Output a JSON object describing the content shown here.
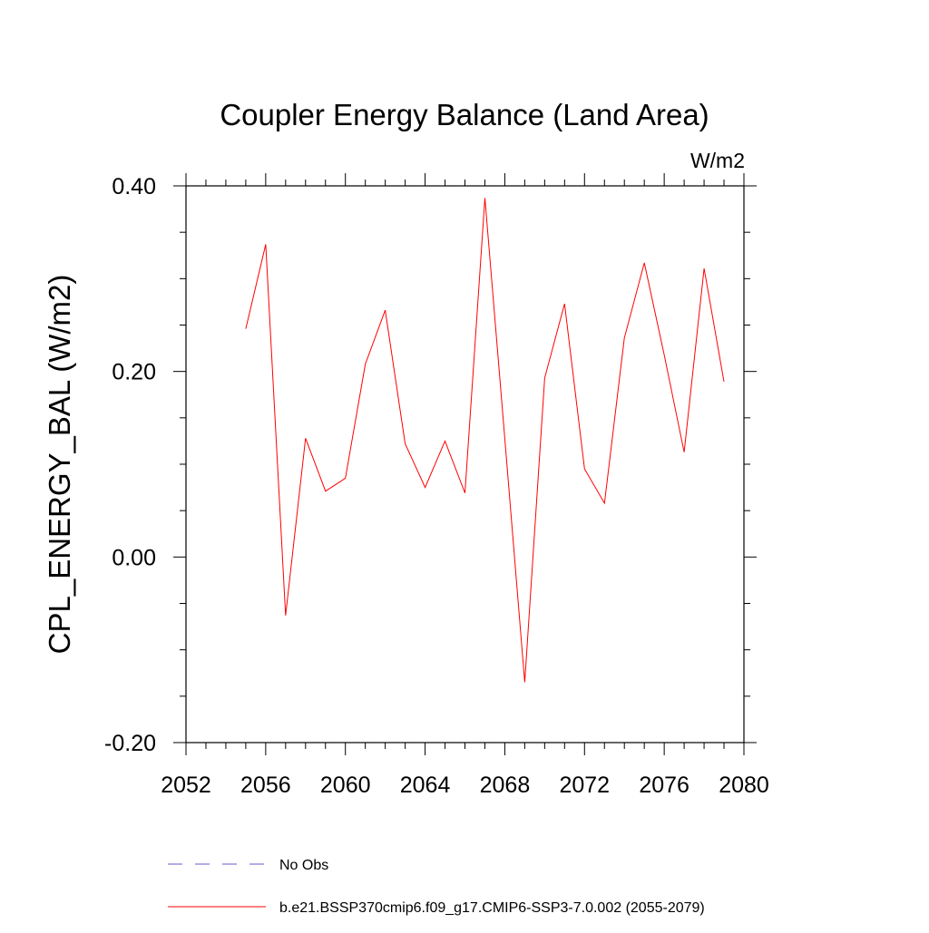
{
  "chart_data": {
    "type": "line",
    "title": "Coupler Energy Balance (Land Area)",
    "units": "W/m2",
    "ylabel": "CPL_ENERGY_BAL  (W/m2)",
    "xlabel": "",
    "xlim": [
      2052,
      2080
    ],
    "ylim": [
      -0.2,
      0.4
    ],
    "x_ticks": [
      2052,
      2056,
      2060,
      2064,
      2068,
      2072,
      2076,
      2080
    ],
    "x_tick_labels": [
      "2052",
      "2056",
      "2060",
      "2064",
      "2068",
      "2072",
      "2076",
      "2080"
    ],
    "y_ticks": [
      -0.2,
      0.0,
      0.2,
      0.4
    ],
    "y_tick_labels": [
      "-0.20",
      "0.00",
      "0.20",
      "0.40"
    ],
    "grid": false,
    "legend_position": "bottom",
    "series": [
      {
        "name": "b.e21.BSSP370cmip6.f09_g17.CMIP6-SSP3-7.0.002 (2055-2079)",
        "color": "#ff0000",
        "style": "solid",
        "x": [
          2055,
          2056,
          2057,
          2058,
          2059,
          2060,
          2061,
          2062,
          2063,
          2064,
          2065,
          2066,
          2067,
          2068,
          2069,
          2070,
          2071,
          2072,
          2073,
          2074,
          2075,
          2076,
          2077,
          2078,
          2079
        ],
        "y": [
          0.246,
          0.337,
          -0.063,
          0.128,
          0.071,
          0.085,
          0.208,
          0.266,
          0.122,
          0.075,
          0.125,
          0.069,
          0.387,
          0.128,
          -0.135,
          0.193,
          0.273,
          0.095,
          0.058,
          0.236,
          0.317,
          0.218,
          0.113,
          0.311,
          0.189
        ]
      }
    ],
    "legend": [
      {
        "label": "No Obs",
        "color": "#6a5acd",
        "style": "dashed"
      },
      {
        "label": "b.e21.BSSP370cmip6.f09_g17.CMIP6-SSP3-7.0.002 (2055-2079)",
        "color": "#ff0000",
        "style": "solid"
      }
    ]
  }
}
